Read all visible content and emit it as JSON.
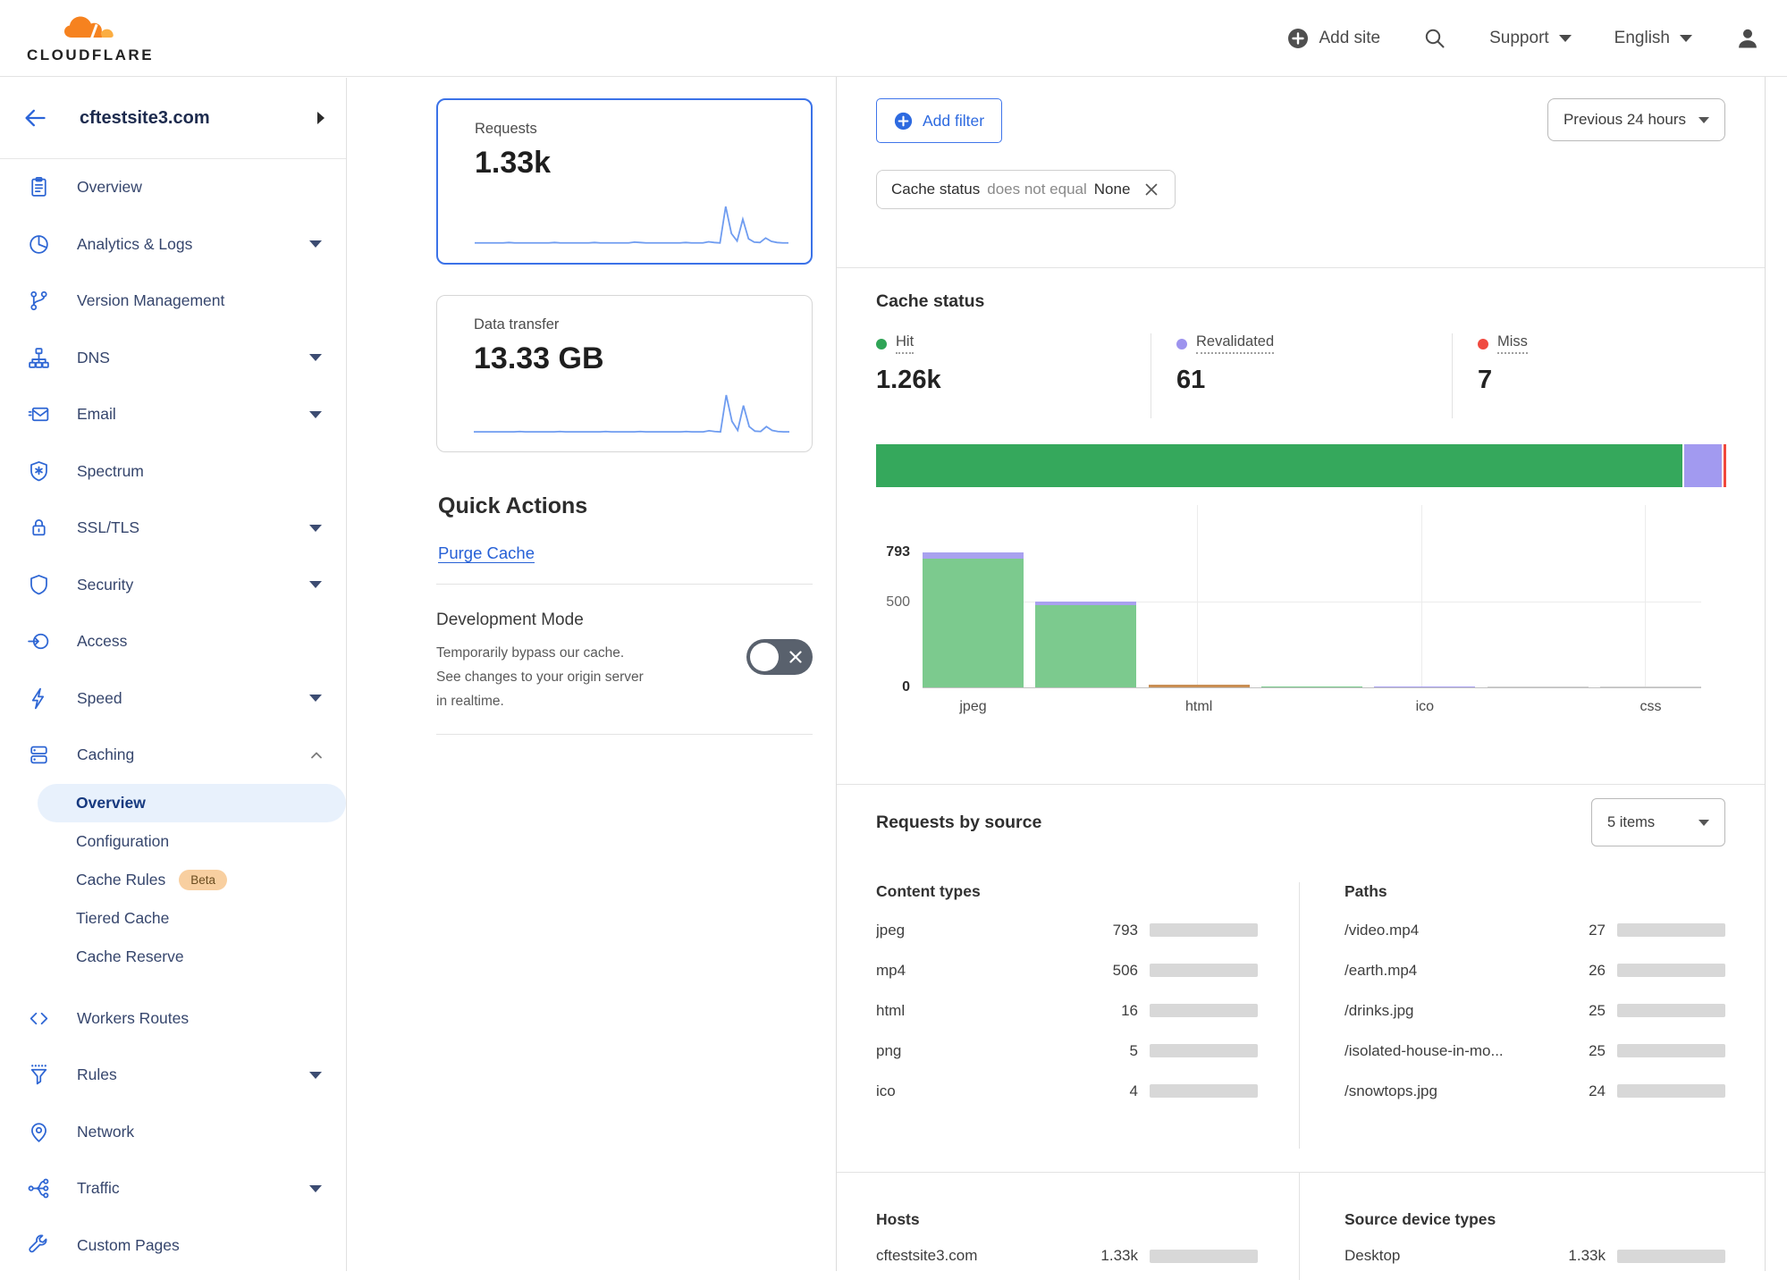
{
  "header": {
    "logo_text": "CLOUDFLARE",
    "add_site": "Add site",
    "support_label": "Support",
    "language_label": "English"
  },
  "sidebar": {
    "site_name": "cftestsite3.com",
    "items": [
      {
        "label": "Overview",
        "icon": "clipboard"
      },
      {
        "label": "Analytics & Logs",
        "icon": "pie",
        "chevron": "down"
      },
      {
        "label": "Version Management",
        "icon": "branch"
      },
      {
        "label": "DNS",
        "icon": "dns",
        "chevron": "down"
      },
      {
        "label": "Email",
        "icon": "mail",
        "chevron": "down"
      },
      {
        "label": "Spectrum",
        "icon": "spectrum"
      },
      {
        "label": "SSL/TLS",
        "icon": "lock",
        "chevron": "down"
      },
      {
        "label": "Security",
        "icon": "shield",
        "chevron": "down"
      },
      {
        "label": "Access",
        "icon": "access"
      },
      {
        "label": "Speed",
        "icon": "bolt",
        "chevron": "down"
      },
      {
        "label": "Caching",
        "icon": "cache",
        "chevron": "up",
        "sub": [
          {
            "label": "Overview",
            "selected": true
          },
          {
            "label": "Configuration"
          },
          {
            "label": "Cache Rules",
            "badge": "Beta"
          },
          {
            "label": "Tiered Cache"
          },
          {
            "label": "Cache Reserve"
          }
        ]
      },
      {
        "label": "Workers Routes",
        "icon": "code"
      },
      {
        "label": "Rules",
        "icon": "funnel",
        "chevron": "down"
      },
      {
        "label": "Network",
        "icon": "pin"
      },
      {
        "label": "Traffic",
        "icon": "traffic",
        "chevron": "down"
      },
      {
        "label": "Custom Pages",
        "icon": "wrench"
      }
    ]
  },
  "metrics": {
    "requests": {
      "label": "Requests",
      "value": "1.33k"
    },
    "data_transfer": {
      "label": "Data transfer",
      "value": "13.33 GB"
    }
  },
  "quick_actions": {
    "title": "Quick Actions",
    "purge_cache_label": "Purge Cache",
    "development_mode": {
      "title": "Development Mode",
      "description": "Temporarily bypass our cache. See changes to your origin server in realtime.",
      "state": "off"
    }
  },
  "filters": {
    "add_filter_label": "Add filter",
    "chip": {
      "field": "Cache status",
      "operator": "does not equal",
      "value": "None"
    },
    "time_range_label": "Previous 24 hours"
  },
  "cache_status": {
    "title": "Cache status",
    "stats": [
      {
        "label": "Hit",
        "value": "1.26k",
        "color": "#2fa456"
      },
      {
        "label": "Revalidated",
        "value": "61",
        "color": "#9d93ee"
      },
      {
        "label": "Miss",
        "value": "7",
        "color": "#f04a40"
      }
    ]
  },
  "requests_by_source": {
    "title": "Requests by source",
    "items_dropdown_label": "5 items",
    "tables": {
      "content_types": {
        "title": "Content types",
        "rows": [
          {
            "label": "jpeg",
            "value": "793",
            "bar_pct": 59
          },
          {
            "label": "mp4",
            "value": "506",
            "bar_pct": 38
          },
          {
            "label": "html",
            "value": "16",
            "bar_pct": 2.5
          },
          {
            "label": "png",
            "value": "5",
            "bar_pct": 2
          },
          {
            "label": "ico",
            "value": "4",
            "bar_pct": 2
          }
        ]
      },
      "paths": {
        "title": "Paths",
        "rows": [
          {
            "label": "/video.mp4",
            "value": "27",
            "bar_pct": 3
          },
          {
            "label": "/earth.mp4",
            "value": "26",
            "bar_pct": 3
          },
          {
            "label": "/drinks.jpg",
            "value": "25",
            "bar_pct": 3
          },
          {
            "label": "/isolated-house-in-mo...",
            "value": "25",
            "bar_pct": 3
          },
          {
            "label": "/snowtops.jpg",
            "value": "24",
            "bar_pct": 3
          }
        ]
      }
    }
  },
  "bottom_tables": {
    "hosts": {
      "title": "Hosts",
      "rows": [
        {
          "label": "cftestsite3.com",
          "value": "1.33k",
          "bar_pct": 100
        }
      ]
    },
    "devices": {
      "title": "Source device types",
      "rows": [
        {
          "label": "Desktop",
          "value": "1.33k",
          "bar_pct": 100
        }
      ]
    }
  },
  "chart_data": [
    {
      "type": "stacked-bar-horizontal",
      "title": "Cache status totals",
      "segments": [
        {
          "name": "Hit",
          "value": 1260,
          "pct": 94.88,
          "color": "#35a85c"
        },
        {
          "name": "Revalidated",
          "value": 61,
          "pct": 4.59,
          "color": "#a29af0"
        },
        {
          "name": "Miss",
          "value": 7,
          "pct": 0.53,
          "color": "#f1483c"
        }
      ]
    },
    {
      "type": "bar",
      "title": "Cache status by content type",
      "ylim": [
        0,
        793
      ],
      "y_ticks": [
        793,
        500,
        0
      ],
      "grid": true,
      "x_tick_labels": [
        "jpeg",
        "html",
        "ico",
        "css"
      ],
      "x_tick_bar_indices": [
        0,
        2,
        4,
        6
      ],
      "colors": {
        "green": "#7cca8e",
        "purple": "#a9a1ef",
        "orange": "#c98f54",
        "gray": "#cfcfcf"
      },
      "bars": [
        {
          "category": "jpeg",
          "segments": [
            {
              "series": "Hit",
              "color": "green",
              "value": 758
            },
            {
              "series": "Revalidated",
              "color": "purple",
              "value": 35
            }
          ]
        },
        {
          "category": "mp4",
          "segments": [
            {
              "series": "Hit",
              "color": "green",
              "value": 481
            },
            {
              "series": "Revalidated",
              "color": "purple",
              "value": 25
            }
          ]
        },
        {
          "category": "html",
          "segments": [
            {
              "series": "Other",
              "color": "orange",
              "value": 16
            }
          ]
        },
        {
          "category": "png",
          "segments": [
            {
              "series": "Hit",
              "color": "green",
              "value": 5
            }
          ]
        },
        {
          "category": "ico",
          "segments": [
            {
              "series": "Revalidated",
              "color": "purple",
              "value": 4
            }
          ]
        },
        {
          "category": "",
          "segments": [
            {
              "series": "Other",
              "color": "gray",
              "value": 2
            }
          ]
        },
        {
          "category": "css",
          "segments": [
            {
              "series": "Other",
              "color": "gray",
              "value": 1
            }
          ]
        }
      ]
    },
    {
      "type": "line",
      "title": "Requests sparkline",
      "values": [
        3,
        3,
        3,
        3,
        3,
        3,
        4,
        3,
        3,
        3,
        3,
        3,
        3,
        3,
        4,
        3,
        3,
        3,
        3,
        3,
        3,
        4,
        3,
        3,
        3,
        3,
        3,
        3,
        5,
        4,
        3,
        3,
        3,
        3,
        3,
        3,
        3,
        4,
        3,
        3,
        3,
        6,
        4,
        3,
        100,
        28,
        8,
        66,
        14,
        5,
        4,
        16,
        7,
        4,
        3,
        3
      ]
    },
    {
      "type": "line",
      "title": "Data transfer sparkline",
      "values": [
        2,
        2,
        2,
        2,
        2,
        2,
        2,
        2,
        3,
        2,
        2,
        2,
        2,
        2,
        2,
        3,
        2,
        2,
        2,
        2,
        2,
        2,
        2,
        3,
        2,
        2,
        2,
        2,
        2,
        3,
        2,
        2,
        2,
        2,
        2,
        2,
        2,
        3,
        2,
        2,
        2,
        5,
        3,
        2,
        100,
        30,
        6,
        72,
        16,
        4,
        3,
        16,
        6,
        3,
        2,
        2
      ]
    }
  ]
}
